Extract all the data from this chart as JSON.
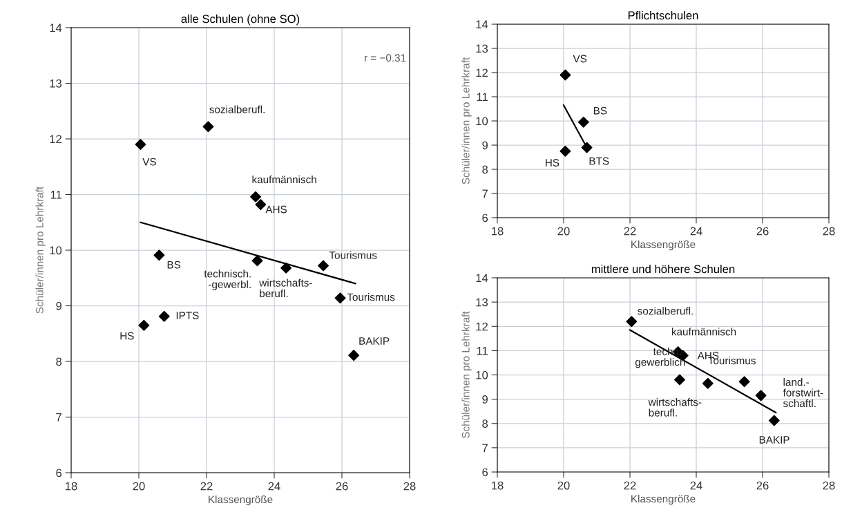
{
  "chart_data": [
    {
      "type": "scatter",
      "title": "alle Schulen (ohne SO)",
      "xlabel": "Klassengröße",
      "ylabel": "Schüler/innen pro Lehrkraft",
      "xlim": [
        18,
        28
      ],
      "xticks": [
        18,
        20,
        22,
        24,
        26,
        28
      ],
      "ylim": [
        6,
        14
      ],
      "yticks": [
        6,
        7,
        8,
        9,
        10,
        11,
        12,
        13,
        14
      ],
      "grid": true,
      "series": [
        {
          "marker": "diamond",
          "color": "#000000",
          "x": [
            20.05,
            22.05,
            23.45,
            23.6,
            20.6,
            23.5,
            24.35,
            25.45,
            25.95,
            20.75,
            20.15,
            26.35
          ],
          "values": [
            11.9,
            12.22,
            10.96,
            10.82,
            9.91,
            9.81,
            9.68,
            9.72,
            9.14,
            8.81,
            8.65,
            8.11
          ]
        },
        {
          "type": "line",
          "marker": "none",
          "line_style": "solid",
          "color": "#000000",
          "x": [
            20.05,
            26.4
          ],
          "values": [
            10.5,
            9.4
          ]
        }
      ],
      "annotations": [
        {
          "text": "VS",
          "x": 20.05,
          "y": 11.9
        },
        {
          "text": "sozialberufl.",
          "x": 22.05,
          "y": 12.22
        },
        {
          "text": "kaufmännisch",
          "x": 23.45,
          "y": 10.96
        },
        {
          "text": "AHS",
          "x": 23.6,
          "y": 10.82
        },
        {
          "text": "BS",
          "x": 20.6,
          "y": 9.91
        },
        {
          "text": "technisch.\n-gewerbl.",
          "x": 23.5,
          "y": 9.81
        },
        {
          "text": "wirtschafts-\nberufl.",
          "x": 24.35,
          "y": 9.68
        },
        {
          "text": "Tourismus",
          "x": 25.45,
          "y": 9.72
        },
        {
          "text": "Tourismus",
          "x": 25.95,
          "y": 9.14
        },
        {
          "text": "IPTS",
          "x": 20.75,
          "y": 8.81
        },
        {
          "text": "HS",
          "x": 20.15,
          "y": 8.65
        },
        {
          "text": "BAKIP",
          "x": 26.35,
          "y": 8.11
        },
        "r = −0.31"
      ]
    },
    {
      "type": "scatter",
      "title": "Pflichtschulen",
      "xlabel": "Klassengröße",
      "ylabel": "Schüler/innen pro Lehrkraft",
      "xlim": [
        18,
        28
      ],
      "xticks": [
        18,
        20,
        22,
        24,
        26,
        28
      ],
      "ylim": [
        6,
        14
      ],
      "yticks": [
        6,
        7,
        8,
        9,
        10,
        11,
        12,
        13,
        14
      ],
      "grid": true,
      "series": [
        {
          "marker": "diamond",
          "color": "#000000",
          "x": [
            20.05,
            20.6,
            20.7,
            20.05
          ],
          "values": [
            11.9,
            9.95,
            8.9,
            8.75
          ]
        },
        {
          "type": "line",
          "marker": "none",
          "line_style": "solid",
          "color": "#000000",
          "x": [
            20.0,
            20.7
          ],
          "values": [
            10.65,
            8.9
          ]
        }
      ],
      "annotations": [
        {
          "text": "VS",
          "x": 20.05,
          "y": 11.9
        },
        {
          "text": "BS",
          "x": 20.6,
          "y": 9.95
        },
        {
          "text": "BTS",
          "x": 20.7,
          "y": 8.9
        },
        {
          "text": "HS",
          "x": 20.05,
          "y": 8.75
        }
      ]
    },
    {
      "type": "scatter",
      "title": "mittlere und höhere Schulen",
      "xlabel": "Klassengröße",
      "ylabel": "Schüler/innen pro Lehrkraft",
      "xlim": [
        18,
        28
      ],
      "xticks": [
        18,
        20,
        22,
        24,
        26,
        28
      ],
      "ylim": [
        6,
        14
      ],
      "yticks": [
        6,
        7,
        8,
        9,
        10,
        11,
        12,
        13,
        14
      ],
      "grid": true,
      "series": [
        {
          "marker": "diamond",
          "color": "#000000",
          "x": [
            22.05,
            23.45,
            23.6,
            23.5,
            24.35,
            25.45,
            25.95,
            26.35
          ],
          "values": [
            12.2,
            10.95,
            10.8,
            9.8,
            9.65,
            9.72,
            9.15,
            8.12
          ]
        },
        {
          "type": "line",
          "marker": "none",
          "line_style": "solid",
          "color": "#000000",
          "x": [
            22.0,
            26.4
          ],
          "values": [
            11.85,
            8.45
          ]
        }
      ],
      "annotations": [
        {
          "text": "sozialberufl.",
          "x": 22.05,
          "y": 12.2
        },
        {
          "text": "kaufmännisch",
          "x": 23.45,
          "y": 10.95
        },
        {
          "text": "AHS",
          "x": 23.6,
          "y": 10.8
        },
        {
          "text": "techn.-\ngewerblich",
          "x": 23.5,
          "y": 9.8
        },
        {
          "text": "wirtschafts-\nberufl.",
          "x": 24.35,
          "y": 9.65
        },
        {
          "text": "Tourismus",
          "x": 25.45,
          "y": 9.72
        },
        {
          "text": "land.-\nforstwirt-\nschaftl.",
          "x": 25.95,
          "y": 9.15
        },
        {
          "text": "BAKIP",
          "x": 26.35,
          "y": 8.12
        }
      ]
    }
  ]
}
